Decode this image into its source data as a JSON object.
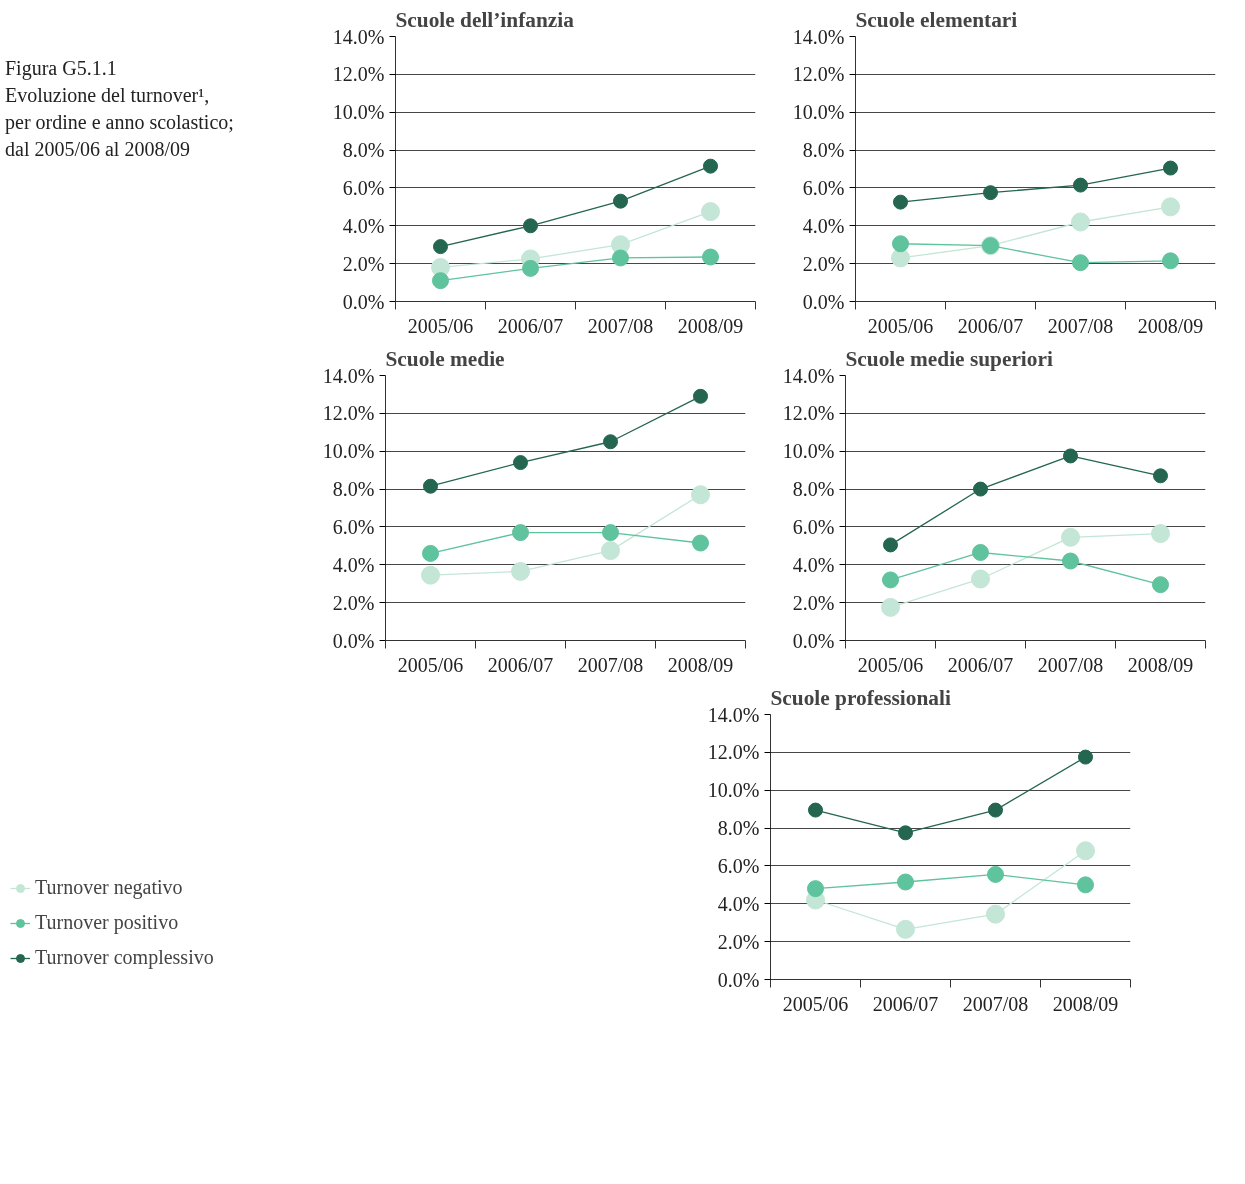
{
  "chart_data": [
    {
      "type": "line",
      "title": "Scuole dell’infanzia",
      "annotations": [
        "Figura G5.1.1",
        "Evoluzione del turnover¹,",
        "per ordine e anno scolastico;",
        "dal 2005/06 al 2008/09"
      ],
      "categories": [
        "2005/06",
        "2006/07",
        "2007/08",
        "2008/09"
      ],
      "ylim": [
        0,
        14
      ],
      "yticks": [
        {
          "value": 0,
          "label": "0.0%"
        },
        {
          "value": 2,
          "label": "2.0%"
        },
        {
          "value": 4,
          "label": "4.0%"
        },
        {
          "value": 6,
          "label": "6.0%"
        },
        {
          "value": 8,
          "label": "8.0%"
        },
        {
          "value": 10,
          "label": "10.0%"
        },
        {
          "value": 12,
          "label": "12.0%"
        },
        {
          "value": 14,
          "label": "14.0%"
        }
      ],
      "grid": "y",
      "marker": "circle",
      "legend": false,
      "series": [
        {
          "color": "#c3e6d6",
          "values": [
            1.8,
            2.25,
            3.0,
            4.75
          ]
        },
        {
          "color": "#5fc39d",
          "values": [
            1.1,
            1.75,
            2.3,
            2.35
          ]
        },
        {
          "color": "#24664f",
          "values": [
            2.9,
            4.0,
            5.3,
            7.15
          ]
        }
      ]
    },
    {
      "type": "line",
      "title": "Scuole elementari",
      "categories": [
        "2005/06",
        "2006/07",
        "2007/08",
        "2008/09"
      ],
      "ylim": [
        0,
        14
      ],
      "yticks": [
        {
          "value": 0,
          "label": "0.0%"
        },
        {
          "value": 2,
          "label": "2.0%"
        },
        {
          "value": 4,
          "label": "4.0%"
        },
        {
          "value": 6,
          "label": "6.0%"
        },
        {
          "value": 8,
          "label": "8.0%"
        },
        {
          "value": 10,
          "label": "10.0%"
        },
        {
          "value": 12,
          "label": "12.0%"
        },
        {
          "value": 14,
          "label": "14.0%"
        }
      ],
      "grid": "y",
      "marker": "circle",
      "legend": false,
      "series": [
        {
          "color": "#c3e6d6",
          "values": [
            2.3,
            2.95,
            4.2,
            5.0
          ]
        },
        {
          "color": "#5fc39d",
          "values": [
            3.05,
            2.95,
            2.05,
            2.15
          ]
        },
        {
          "color": "#24664f",
          "values": [
            5.25,
            5.75,
            6.15,
            7.05
          ]
        }
      ]
    },
    {
      "type": "line",
      "title": "Scuole medie",
      "categories": [
        "2005/06",
        "2006/07",
        "2007/08",
        "2008/09"
      ],
      "ylim": [
        0,
        14
      ],
      "yticks": [
        {
          "value": 0,
          "label": "0.0%"
        },
        {
          "value": 2,
          "label": "2.0%"
        },
        {
          "value": 4,
          "label": "4.0%"
        },
        {
          "value": 6,
          "label": "6.0%"
        },
        {
          "value": 8,
          "label": "8.0%"
        },
        {
          "value": 10,
          "label": "10.0%"
        },
        {
          "value": 12,
          "label": "12.0%"
        },
        {
          "value": 14,
          "label": "14.0%"
        }
      ],
      "grid": "y",
      "marker": "circle",
      "legend": false,
      "series": [
        {
          "color": "#c3e6d6",
          "values": [
            3.45,
            3.65,
            4.75,
            7.7
          ]
        },
        {
          "color": "#5fc39d",
          "values": [
            4.6,
            5.7,
            5.7,
            5.15
          ]
        },
        {
          "color": "#24664f",
          "values": [
            8.15,
            9.4,
            10.5,
            12.9
          ]
        }
      ]
    },
    {
      "type": "line",
      "title": "Scuole medie superiori",
      "categories": [
        "2005/06",
        "2006/07",
        "2007/08",
        "2008/09"
      ],
      "ylim": [
        0,
        14
      ],
      "yticks": [
        {
          "value": 0,
          "label": "0.0%"
        },
        {
          "value": 2,
          "label": "2.0%"
        },
        {
          "value": 4,
          "label": "4.0%"
        },
        {
          "value": 6,
          "label": "6.0%"
        },
        {
          "value": 8,
          "label": "8.0%"
        },
        {
          "value": 10,
          "label": "10.0%"
        },
        {
          "value": 12,
          "label": "12.0%"
        },
        {
          "value": 14,
          "label": "14.0%"
        }
      ],
      "grid": "y",
      "marker": "circle",
      "legend": false,
      "series": [
        {
          "color": "#c3e6d6",
          "values": [
            1.75,
            3.25,
            5.45,
            5.65
          ]
        },
        {
          "color": "#5fc39d",
          "values": [
            3.2,
            4.65,
            4.2,
            2.95
          ]
        },
        {
          "color": "#24664f",
          "values": [
            5.05,
            8.0,
            9.75,
            8.7
          ]
        }
      ]
    },
    {
      "type": "line",
      "title": "Scuole professionali",
      "categories": [
        "2005/06",
        "2006/07",
        "2007/08",
        "2008/09"
      ],
      "ylim": [
        0,
        14
      ],
      "yticks": [
        {
          "value": 0,
          "label": "0.0%"
        },
        {
          "value": 2,
          "label": "2.0%"
        },
        {
          "value": 4,
          "label": "4.0%"
        },
        {
          "value": 6,
          "label": "6.0%"
        },
        {
          "value": 8,
          "label": "8.0%"
        },
        {
          "value": 10,
          "label": "10.0%"
        },
        {
          "value": 12,
          "label": "12.0%"
        },
        {
          "value": 14,
          "label": "14.0%"
        }
      ],
      "grid": "y",
      "marker": "circle",
      "legend": "left",
      "series": [
        {
          "name": "Turnover negativo",
          "color": "#c3e6d6",
          "values": [
            4.2,
            2.65,
            3.45,
            6.8
          ]
        },
        {
          "name": "Turnover positivo",
          "color": "#5fc39d",
          "values": [
            4.8,
            5.15,
            5.55,
            5.0
          ]
        },
        {
          "name": "Turnover complessivo",
          "color": "#24664f",
          "values": [
            8.95,
            7.75,
            8.95,
            11.75
          ]
        }
      ]
    }
  ]
}
